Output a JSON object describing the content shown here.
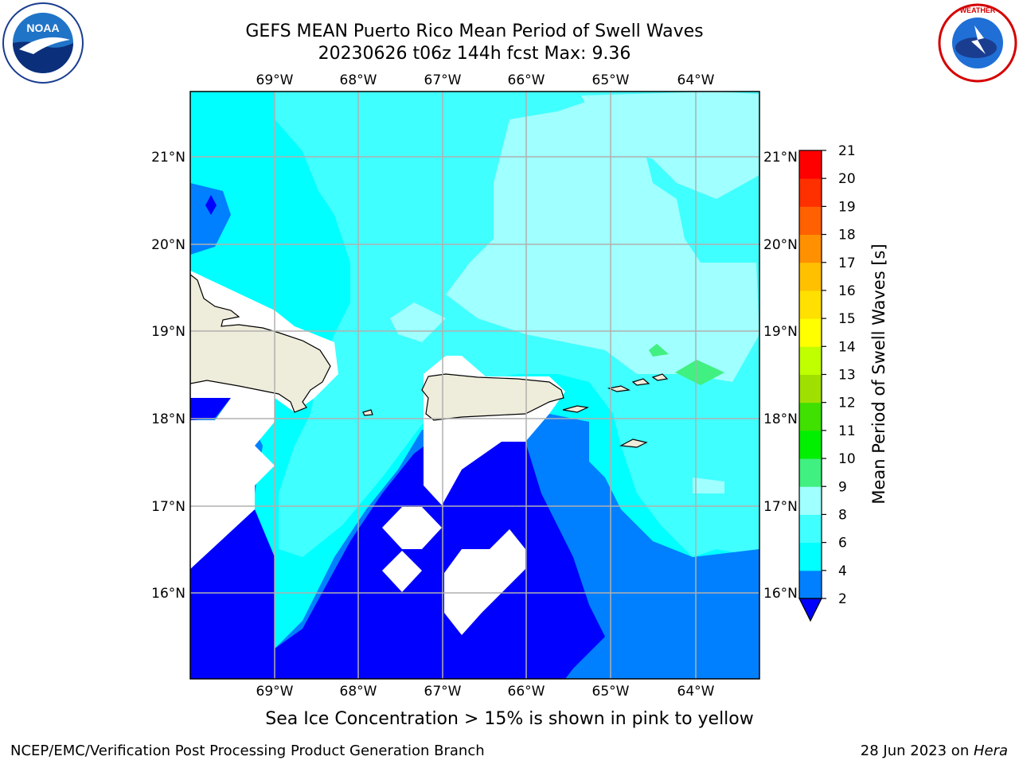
{
  "title": {
    "line1": "GEFS MEAN Puerto Rico Mean Period of Swell Waves",
    "line2": "20230626 t06z 144h fcst   Max: 9.36"
  },
  "logos": {
    "left": "NOAA",
    "right": "NATIONAL WEATHER SERVICE"
  },
  "map": {
    "lon_ticks": [
      "69°W",
      "68°W",
      "67°W",
      "66°W",
      "65°W",
      "64°W"
    ],
    "lat_ticks": [
      "21°N",
      "20°N",
      "19°N",
      "18°N",
      "17°N",
      "16°N"
    ],
    "colors": {
      "ocean_deep": "#0000ff",
      "ocean_2_4": "#0080ff",
      "ocean_4_6": "#00ffff",
      "ocean_6_8": "#40ffff",
      "ocean_8_9": "#a0ffff",
      "ocean_9_10": "#40f080",
      "land": "#eeecda",
      "masked": "#ffffff",
      "grid": "#b0b0b0"
    }
  },
  "colorbar": {
    "title": "Mean Period of Swell Waves [s]",
    "levels": [
      "2",
      "4",
      "6",
      "8",
      "9",
      "10",
      "11",
      "12",
      "13",
      "14",
      "15",
      "16",
      "17",
      "18",
      "19",
      "20",
      "21"
    ],
    "colors": [
      "#0000ff",
      "#0080ff",
      "#00ffff",
      "#40ffff",
      "#a0ffff",
      "#40f080",
      "#00f000",
      "#40e000",
      "#a0e000",
      "#c0ff00",
      "#ffff00",
      "#ffe000",
      "#ffc000",
      "#ff9000",
      "#ff6000",
      "#ff3000",
      "#ff0000"
    ]
  },
  "caption": "Sea Ice Concentration > 15% is shown in pink to yellow",
  "footer": {
    "left": "NCEP/EMC/Verification Post Processing Product Generation Branch",
    "right_prefix": "28 Jun 2023 on ",
    "right_host": "Hera"
  }
}
